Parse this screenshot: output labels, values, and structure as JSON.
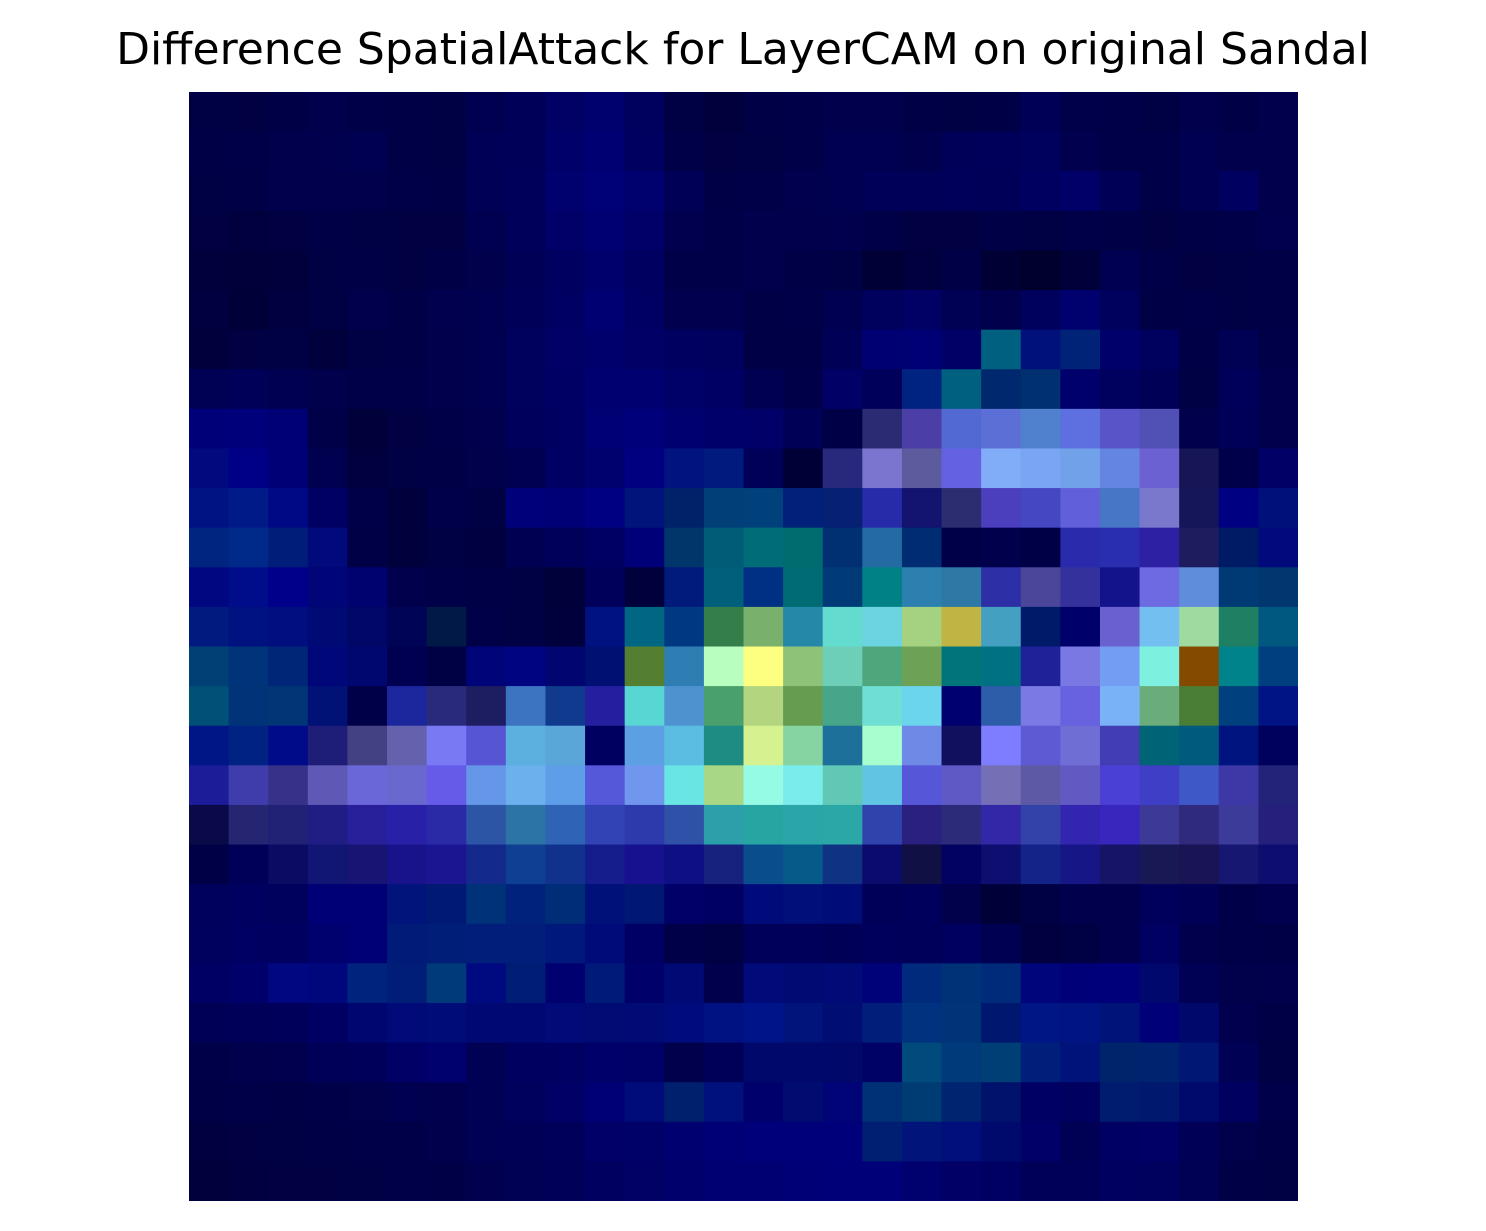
{
  "chart_data": {
    "type": "heatmap",
    "title": "Difference SpatialAttack for LayerCAM on original Sandal",
    "xlabel": "",
    "ylabel": "",
    "grid": false,
    "axes_visible": false,
    "legend": "none",
    "rows": 28,
    "cols": 28,
    "cells": [
      [
        "#000044",
        "#000042",
        "#000047",
        "#00004c",
        "#000049",
        "#000047",
        "#000044",
        "#000051",
        "#000058",
        "#000065",
        "#00006f",
        "#00005f",
        "#000044",
        "#00003c",
        "#000046",
        "#000049",
        "#00004c",
        "#00004c",
        "#000047",
        "#000044",
        "#000046",
        "#000056",
        "#00004a",
        "#000049",
        "#000044",
        "#00004c",
        "#000047",
        "#00004c"
      ],
      [
        "#000047",
        "#000049",
        "#00004c",
        "#00004e",
        "#000051",
        "#000047",
        "#000044",
        "#000056",
        "#000058",
        "#00006a",
        "#000072",
        "#000061",
        "#000049",
        "#000042",
        "#000044",
        "#000049",
        "#000051",
        "#000051",
        "#00004c",
        "#000058",
        "#00005b",
        "#00005d",
        "#00004e",
        "#000049",
        "#000049",
        "#000051",
        "#00004c",
        "#00004c"
      ],
      [
        "#000044",
        "#000047",
        "#00004c",
        "#00004c",
        "#00004c",
        "#000049",
        "#000047",
        "#000056",
        "#00005b",
        "#00006f",
        "#000077",
        "#00006f",
        "#000056",
        "#000047",
        "#000049",
        "#00004e",
        "#000051",
        "#000058",
        "#000058",
        "#00005b",
        "#000058",
        "#000061",
        "#000068",
        "#000056",
        "#000049",
        "#000051",
        "#000061",
        "#00004c"
      ],
      [
        "#000042",
        "#00003f",
        "#000042",
        "#000047",
        "#000044",
        "#000042",
        "#000042",
        "#000051",
        "#00005b",
        "#000068",
        "#000072",
        "#000068",
        "#00004e",
        "#000049",
        "#00004c",
        "#00004c",
        "#00004e",
        "#000049",
        "#000042",
        "#000042",
        "#000047",
        "#000044",
        "#000049",
        "#000047",
        "#000042",
        "#000047",
        "#000049",
        "#00004e"
      ],
      [
        "#00003d",
        "#00003a",
        "#00003d",
        "#000044",
        "#000047",
        "#000042",
        "#000047",
        "#00004c",
        "#000056",
        "#000061",
        "#00006d",
        "#000061",
        "#000049",
        "#000049",
        "#00004c",
        "#000047",
        "#000044",
        "#000037",
        "#00003f",
        "#000047",
        "#000035",
        "#00002d",
        "#00003a",
        "#000051",
        "#000049",
        "#000042",
        "#000044",
        "#000047"
      ],
      [
        "#000040",
        "#000038",
        "#000040",
        "#000044",
        "#00004c",
        "#000047",
        "#00004e",
        "#000051",
        "#000058",
        "#000063",
        "#000073",
        "#000063",
        "#00004e",
        "#00004e",
        "#000047",
        "#000049",
        "#000051",
        "#00005d",
        "#000065",
        "#000054",
        "#00004c",
        "#00005d",
        "#00006f",
        "#00005d",
        "#000047",
        "#000049",
        "#000044",
        "#000047"
      ],
      [
        "#00003d",
        "#000042",
        "#000045",
        "#00003d",
        "#000044",
        "#000047",
        "#00004c",
        "#000051",
        "#00005d",
        "#000066",
        "#00006c",
        "#000066",
        "#000061",
        "#00005e",
        "#000047",
        "#000047",
        "#000057",
        "#000072",
        "#000075",
        "#000066",
        "#006080",
        "#00117b",
        "#002378",
        "#00006a",
        "#00005f",
        "#000047",
        "#000054",
        "#000049"
      ],
      [
        "#000055",
        "#000059",
        "#000052",
        "#00004c",
        "#000049",
        "#000049",
        "#00004c",
        "#000050",
        "#00005d",
        "#000064",
        "#000071",
        "#000070",
        "#000069",
        "#000064",
        "#000052",
        "#000049",
        "#000067",
        "#00005a",
        "#002281",
        "#006080",
        "#00286f",
        "#00306f",
        "#00006c",
        "#00005e",
        "#000056",
        "#000045",
        "#00005b",
        "#00004d"
      ],
      [
        "#000079",
        "#00007b",
        "#000075",
        "#000048",
        "#00003b",
        "#000042",
        "#000049",
        "#00004e",
        "#00005c",
        "#000063",
        "#000075",
        "#00007b",
        "#000070",
        "#00006a",
        "#000068",
        "#000057",
        "#000047",
        "#2b2b73",
        "#4b3ea6",
        "#5268d3",
        "#5c6fd7",
        "#4f81cf",
        "#5e70e0",
        "#5955c9",
        "#5050b5",
        "#00004c",
        "#000058",
        "#00004c"
      ],
      [
        "#000a7e",
        "#000086",
        "#000075",
        "#000050",
        "#00003e",
        "#000044",
        "#000047",
        "#00004c",
        "#000051",
        "#000064",
        "#00006f",
        "#000080",
        "#00137f",
        "#001a7e",
        "#000059",
        "#000037",
        "#28287c",
        "#7a76cf",
        "#5c5b9e",
        "#6461e2",
        "#81acf7",
        "#79a5f4",
        "#71a2e9",
        "#6486e2",
        "#6c61d2",
        "#161654",
        "#00004a",
        "#000066"
      ],
      [
        "#001383",
        "#001b88",
        "#000985",
        "#000064",
        "#000048",
        "#00003c",
        "#00004a",
        "#000045",
        "#00007a",
        "#000076",
        "#000082",
        "#00147b",
        "#002268",
        "#003f78",
        "#00417c",
        "#00207a",
        "#062174",
        "#272ba9",
        "#131370",
        "#2c2c70",
        "#4b3fbe",
        "#4547c2",
        "#6160da",
        "#4876c6",
        "#7978cd",
        "#15155a",
        "#000083",
        "#00107a"
      ],
      [
        "#002580",
        "#002a8a",
        "#001e79",
        "#000a7a",
        "#000047",
        "#00003d",
        "#000044",
        "#000040",
        "#000052",
        "#00005a",
        "#000062",
        "#000078",
        "#003669",
        "#005c77",
        "#006c77",
        "#006c6f",
        "#003071",
        "#226ba3",
        "#002c73",
        "#000048",
        "#00004d",
        "#000046",
        "#2a2aad",
        "#292eb0",
        "#2d20a2",
        "#1d1c5e",
        "#001b66",
        "#000a7b"
      ],
      [
        "#000780",
        "#000d8a",
        "#00008b",
        "#000678",
        "#000270",
        "#00004c",
        "#000048",
        "#000046",
        "#000044",
        "#00003b",
        "#00005a",
        "#00003c",
        "#001b7b",
        "#005f7a",
        "#003083",
        "#006b72",
        "#003b78",
        "#008185",
        "#2c7faf",
        "#2d78a5",
        "#2d2fa6",
        "#4b4699",
        "#35319c",
        "#13138c",
        "#6d6ae2",
        "#5f8ddb",
        "#003a75",
        "#00376f"
      ],
      [
        "#001a7f",
        "#001180",
        "#000e7e",
        "#000a75",
        "#000766",
        "#000456",
        "#001947",
        "#000048",
        "#000045",
        "#00003d",
        "#001280",
        "#006681",
        "#003981",
        "#347e4a",
        "#79b06b",
        "#2688a8",
        "#63dccf",
        "#6bd4e0",
        "#a4d281",
        "#c0b544",
        "#44a0c0",
        "#001a6a",
        "#00006b",
        "#6a61d0",
        "#73c0f0",
        "#9fdba0",
        "#1f7f63",
        "#00577f"
      ],
      [
        "#004075",
        "#00347a",
        "#002677",
        "#000879",
        "#000870",
        "#000052",
        "#000044",
        "#000479",
        "#000480",
        "#000570",
        "#000f72",
        "#547f31",
        "#2e7db3",
        "#b8ffbf",
        "#fdff80",
        "#8dc278",
        "#6ecfb9",
        "#4ea77c",
        "#6da155",
        "#00747b",
        "#007183",
        "#1e2197",
        "#7a79e4",
        "#729df0",
        "#7ef0df",
        "#844b00",
        "#00838a",
        "#003f7f"
      ],
      [
        "#005078",
        "#003378",
        "#003576",
        "#001276",
        "#000049",
        "#1c279e",
        "#2a2a7c",
        "#1d1d62",
        "#3c74c2",
        "#103a8d",
        "#251fa0",
        "#58d6d3",
        "#4e92d0",
        "#4aa06d",
        "#b3d57f",
        "#659c4f",
        "#47a68a",
        "#70dfd3",
        "#6ad5ec",
        "#000070",
        "#2d5ca9",
        "#7b7ae4",
        "#6861e0",
        "#7ab2f8",
        "#6aad7b",
        "#4a7d36",
        "#00407e",
        "#001486"
      ],
      [
        "#001686",
        "#002283",
        "#000b8a",
        "#1e1e79",
        "#444084",
        "#6461ad",
        "#7879f3",
        "#5656d5",
        "#5bb0df",
        "#5aa6d9",
        "#000061",
        "#5d9fe3",
        "#5bbde1",
        "#1e8c82",
        "#d6f18f",
        "#86d4a1",
        "#1c709a",
        "#a9fecf",
        "#6e89e6",
        "#10105e",
        "#7f7dff",
        "#5d5ad3",
        "#6e6ed5",
        "#423db3",
        "#006476",
        "#005a7d",
        "#001480",
        "#00005d"
      ],
      [
        "#1c1c98",
        "#3f3dac",
        "#363189",
        "#5e59b5",
        "#6a67d8",
        "#6868cf",
        "#665ae8",
        "#6497e8",
        "#6cb0ee",
        "#5e9de8",
        "#5558d9",
        "#7096ee",
        "#6ae5e6",
        "#a8d786",
        "#96fbe5",
        "#7aecec",
        "#60c8b5",
        "#60c4e2",
        "#5656d8",
        "#5e59c5",
        "#7570b5",
        "#5e59a4",
        "#625ac3",
        "#4a40d5",
        "#3e3ec6",
        "#3f58c8",
        "#3e37a6",
        "#23237a"
      ],
      [
        "#0a0a48",
        "#252572",
        "#212176",
        "#201d84",
        "#27209a",
        "#2821a8",
        "#2a2aa6",
        "#2c55a6",
        "#2d74a6",
        "#2f63b5",
        "#3244b5",
        "#2c3aab",
        "#2f51a8",
        "#2ca0aa",
        "#27a5a3",
        "#2aa5a8",
        "#2ca7a7",
        "#3043ad",
        "#2a2080",
        "#2c2b7a",
        "#3227a6",
        "#3342a8",
        "#3226b1",
        "#3826bd",
        "#3c3a96",
        "#302a7c",
        "#3c3b99",
        "#25207c"
      ],
      [
        "#000047",
        "#000059",
        "#0b0b64",
        "#111573",
        "#171473",
        "#19138b",
        "#1c1591",
        "#13298c",
        "#0f3f92",
        "#10328c",
        "#151c8b",
        "#171190",
        "#0f0f84",
        "#17227e",
        "#0a4d8c",
        "#055a8a",
        "#0f3382",
        "#0b0b6e",
        "#101045",
        "#020262",
        "#0e0e70",
        "#142388",
        "#171686",
        "#151465",
        "#181854",
        "#191554",
        "#151770",
        "#0d0d6f"
      ],
      [
        "#00005d",
        "#000061",
        "#00005d",
        "#000076",
        "#000074",
        "#00147c",
        "#001a74",
        "#00327a",
        "#00227c",
        "#002d78",
        "#001279",
        "#001773",
        "#000068",
        "#000063",
        "#000b7b",
        "#000f79",
        "#000c77",
        "#000059",
        "#00005c",
        "#00004b",
        "#000038",
        "#000044",
        "#00004c",
        "#00004c",
        "#00005c",
        "#000056",
        "#000049",
        "#00004e"
      ],
      [
        "#00005f",
        "#000062",
        "#000061",
        "#00006f",
        "#000074",
        "#001b78",
        "#001e78",
        "#001e7a",
        "#001e7a",
        "#00187c",
        "#000b7a",
        "#000064",
        "#000049",
        "#000044",
        "#00005b",
        "#00005a",
        "#000057",
        "#00005c",
        "#00005a",
        "#000060",
        "#000052",
        "#00003f",
        "#000045",
        "#00004c",
        "#000062",
        "#00004c",
        "#000048",
        "#000046"
      ],
      [
        "#000064",
        "#00006b",
        "#000781",
        "#00077d",
        "#00247d",
        "#001e77",
        "#003a7b",
        "#000a80",
        "#001d76",
        "#000071",
        "#001a7a",
        "#00006b",
        "#000a74",
        "#00004d",
        "#000a79",
        "#000a73",
        "#000b78",
        "#000279",
        "#002a7c",
        "#003278",
        "#002b7a",
        "#00057c",
        "#000078",
        "#00007b",
        "#00076d",
        "#000055",
        "#00004b",
        "#00004c"
      ],
      [
        "#000056",
        "#000058",
        "#00005b",
        "#000064",
        "#00066f",
        "#000a78",
        "#000d78",
        "#000973",
        "#000973",
        "#000a78",
        "#000b73",
        "#000b75",
        "#000c7b",
        "#001181",
        "#001489",
        "#00147b",
        "#000d73",
        "#001f7b",
        "#003280",
        "#003478",
        "#001770",
        "#001684",
        "#001482",
        "#001378",
        "#000078",
        "#00086b",
        "#00004f",
        "#000046"
      ],
      [
        "#000049",
        "#00004c",
        "#00004e",
        "#000058",
        "#00005a",
        "#000067",
        "#00006f",
        "#000054",
        "#000060",
        "#000062",
        "#00006b",
        "#000069",
        "#00004c",
        "#000059",
        "#00086c",
        "#00096b",
        "#00096a",
        "#000265",
        "#004b7b",
        "#003a7a",
        "#003e76",
        "#001f7b",
        "#00137b",
        "#00246c",
        "#00236f",
        "#001873",
        "#000055",
        "#000045"
      ],
      [
        "#000047",
        "#000049",
        "#000047",
        "#000049",
        "#00004b",
        "#000050",
        "#00004f",
        "#000054",
        "#00005d",
        "#000066",
        "#000074",
        "#000c79",
        "#00206e",
        "#00107c",
        "#00006c",
        "#000c70",
        "#000476",
        "#003076",
        "#003c74",
        "#00246f",
        "#00126c",
        "#000064",
        "#000060",
        "#001c6f",
        "#00196e",
        "#000a6d",
        "#000061",
        "#00004a"
      ],
      [
        "#000040",
        "#000042",
        "#000044",
        "#000047",
        "#000049",
        "#000049",
        "#00004c",
        "#000054",
        "#000056",
        "#00005b",
        "#000068",
        "#000069",
        "#000071",
        "#000076",
        "#00007a",
        "#00007b",
        "#00007b",
        "#001f73",
        "#001479",
        "#000f7b",
        "#000a6d",
        "#000068",
        "#000054",
        "#000062",
        "#000067",
        "#000056",
        "#00004b",
        "#000047"
      ],
      [
        "#00003d",
        "#000040",
        "#000042",
        "#000042",
        "#000044",
        "#000049",
        "#000047",
        "#00004e",
        "#000054",
        "#000058",
        "#000061",
        "#000065",
        "#00006c",
        "#000072",
        "#000072",
        "#000076",
        "#000079",
        "#000078",
        "#00006f",
        "#000066",
        "#000062",
        "#000058",
        "#000059",
        "#000061",
        "#00005f",
        "#000054",
        "#000047",
        "#000044"
      ]
    ]
  }
}
